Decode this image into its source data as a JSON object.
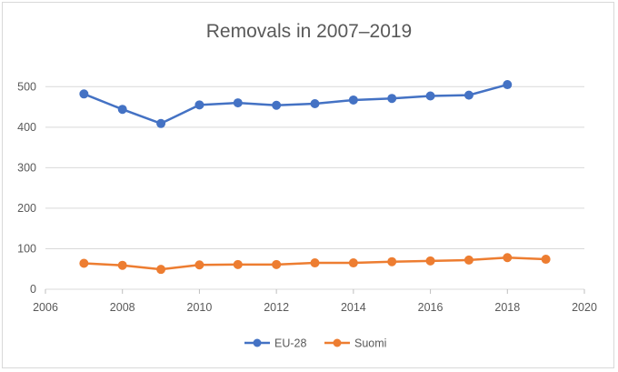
{
  "chart_data": {
    "type": "line",
    "title": "Removals in 2007–2019",
    "xlabel": "",
    "ylabel": "",
    "xlim": [
      2006,
      2020
    ],
    "ylim": [
      0,
      550
    ],
    "x_ticks": [
      "2006",
      "2008",
      "2010",
      "2012",
      "2014",
      "2016",
      "2018",
      "2020"
    ],
    "y_ticks": [
      "0",
      "100",
      "200",
      "300",
      "400",
      "500"
    ],
    "grid": "horizontal",
    "legend_position": "bottom",
    "series": [
      {
        "name": "EU-28",
        "color": "#4472C4",
        "x": [
          2007,
          2008,
          2009,
          2010,
          2011,
          2012,
          2013,
          2014,
          2015,
          2016,
          2017,
          2018
        ],
        "values": [
          482,
          444,
          409,
          455,
          460,
          454,
          458,
          467,
          471,
          477,
          479,
          505
        ]
      },
      {
        "name": "Suomi",
        "color": "#ED7D31",
        "x": [
          2007,
          2008,
          2009,
          2010,
          2011,
          2012,
          2013,
          2014,
          2015,
          2016,
          2017,
          2018,
          2019
        ],
        "values": [
          64,
          59,
          49,
          60,
          61,
          61,
          65,
          65,
          68,
          70,
          72,
          78,
          74
        ]
      }
    ]
  }
}
